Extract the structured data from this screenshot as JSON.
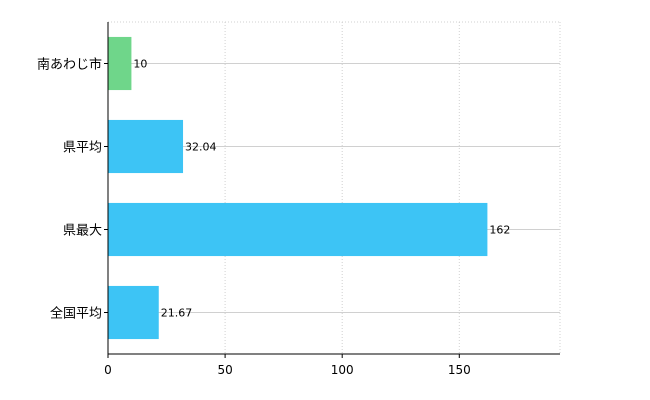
{
  "chart_data": {
    "type": "bar",
    "orientation": "horizontal",
    "categories": [
      "南あわじ市",
      "県平均",
      "県最大",
      "全国平均"
    ],
    "values": [
      10,
      32.04,
      162,
      21.67
    ],
    "data_labels": [
      "10",
      "32.04",
      "162",
      "21.67"
    ],
    "bar_colors": [
      "#6fd68a",
      "#3dc4f5",
      "#3dc4f5",
      "#3dc4f5"
    ],
    "xlim": [
      0,
      193
    ],
    "xticks": [
      0,
      50,
      100,
      150
    ],
    "grid": true,
    "title": "",
    "xlabel": "",
    "ylabel": ""
  }
}
